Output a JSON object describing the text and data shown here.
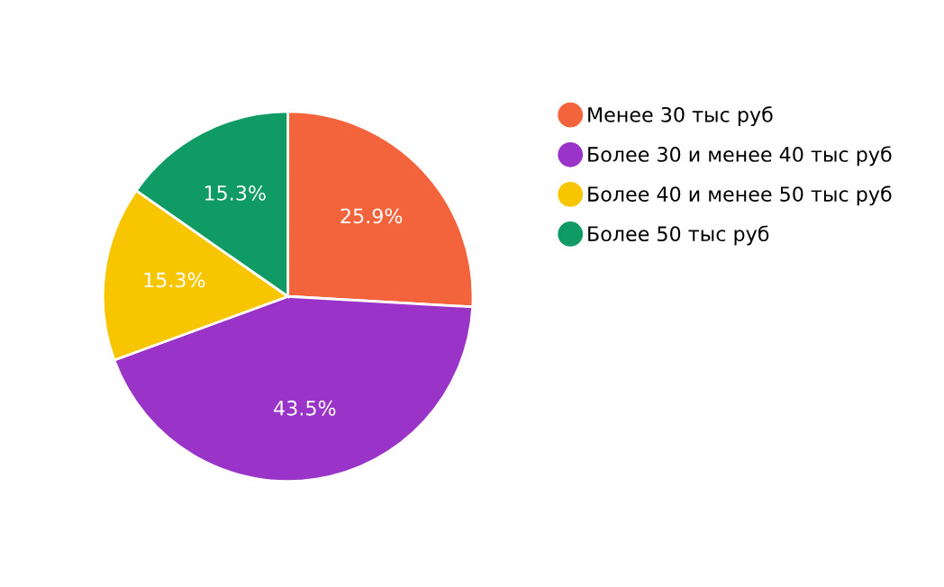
{
  "chart_data": {
    "type": "pie",
    "categories": [
      "Менее 30 тыс руб",
      "Более 30 и менее 40 тыс руб",
      "Более 40 и менее 50 тыс руб",
      "Более 50 тыс руб"
    ],
    "values": [
      25.9,
      43.5,
      15.3,
      15.3
    ],
    "colors": [
      "#f4643c",
      "#9a34c8",
      "#f7c600",
      "#0f9b63"
    ],
    "value_labels": [
      "25.9%",
      "43.5%",
      "15.3%",
      "15.3%"
    ],
    "legend": "right"
  }
}
